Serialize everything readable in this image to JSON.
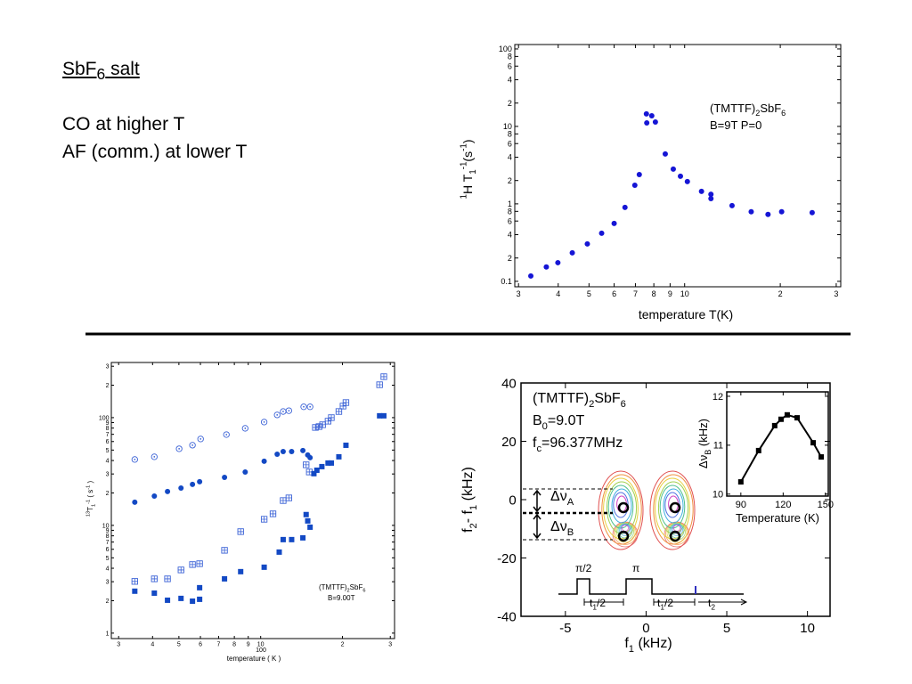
{
  "header": {
    "title": [
      "SbF",
      {
        "sub": "6"
      },
      " salt"
    ],
    "lines": [
      "CO at higher T",
      "AF (comm.) at lower T"
    ]
  },
  "chart_data": [
    {
      "type": "scatter",
      "xlog": true,
      "ylog": true,
      "xlabel": "temperature T(K)",
      "ylabel": [
        {
          "sup": "1"
        },
        "H T",
        {
          "sub": "1"
        },
        {
          "sup": "-1"
        },
        "(s",
        {
          "sup": "-1"
        },
        ")"
      ],
      "annotations": [
        [
          "(TMTTF)",
          {
            "sub": "2"
          },
          "SbF",
          {
            "sub": "6"
          }
        ],
        [
          "B=9T P=0"
        ]
      ],
      "xlim": [
        2.92,
        31
      ],
      "ylim": [
        0.085,
        114
      ],
      "xticks": [
        3,
        4,
        5,
        6,
        7,
        8,
        9,
        10,
        {
          "value": 20,
          "label": "2"
        },
        {
          "value": 30,
          "label": "3"
        }
      ],
      "yticks": [
        0.1,
        {
          "value": 0.2,
          "label": "2"
        },
        {
          "value": 0.4,
          "label": "4"
        },
        {
          "value": 0.6,
          "label": "6"
        },
        {
          "value": 0.8,
          "label": "8"
        },
        1,
        2,
        4,
        6,
        8,
        10,
        {
          "value": 20,
          "label": "2"
        },
        {
          "value": 40,
          "label": "4"
        },
        {
          "value": 60,
          "label": "6"
        },
        {
          "value": 80,
          "label": "8"
        },
        100
      ],
      "series": [
        {
          "color": "#1515d5",
          "marker": "circle",
          "x": [
            3.28,
            3.67,
            3.99,
            4.43,
            4.94,
            5.48,
            6.0,
            6.49,
            6.97,
            7.2,
            7.58,
            7.6,
            7.88,
            8.09,
            8.69,
            9.21,
            9.7,
            10.2,
            11.3,
            12.1,
            12.1,
            14.1,
            16.2,
            18.3,
            20.2,
            25.2
          ],
          "values": [
            0.117,
            0.153,
            0.174,
            0.233,
            0.304,
            0.418,
            0.558,
            0.9,
            1.74,
            2.39,
            14.5,
            11.1,
            13.7,
            11.4,
            4.41,
            2.81,
            2.27,
            1.94,
            1.45,
            1.33,
            1.17,
            0.95,
            0.79,
            0.73,
            0.79,
            0.77
          ]
        }
      ]
    },
    {
      "type": "scatter",
      "xlog": true,
      "ylog": true,
      "xlabel": "temperature ( K )",
      "x_decade_label": "100",
      "ylabel": [
        {
          "sup": "13"
        },
        "T",
        {
          "sub": "1"
        },
        {
          "sup": "-1"
        },
        " ( s",
        {
          "sup": "-1"
        },
        " )"
      ],
      "annotations": [
        [
          "(TMTTF)",
          {
            "sub": "2"
          },
          "SbF",
          {
            "sub": "6"
          }
        ],
        [
          "B=9.00T"
        ]
      ],
      "xlim": [
        2.82,
        31.1
      ],
      "ylim": [
        0.89,
        325
      ],
      "xticks": [
        3,
        4,
        5,
        6,
        7,
        8,
        9,
        10,
        {
          "value": 20,
          "label": "2"
        },
        {
          "value": 30,
          "label": "3"
        }
      ],
      "yticks": [
        1,
        2,
        3,
        4,
        5,
        6,
        7,
        8,
        9,
        10,
        {
          "value": 20,
          "label": "2"
        },
        {
          "value": 30,
          "label": "3"
        },
        {
          "value": 40,
          "label": "4"
        },
        {
          "value": 50,
          "label": "5"
        },
        {
          "value": 60,
          "label": "6"
        },
        {
          "value": 70,
          "label": "7"
        },
        {
          "value": 80,
          "label": "8"
        },
        {
          "value": 90,
          "label": "9"
        },
        100,
        {
          "value": 200,
          "label": "2"
        },
        {
          "value": 300,
          "label": "3"
        }
      ],
      "series": [
        {
          "color": "#3b62d6",
          "marker": "circle-dot",
          "x": [
            3.44,
            4.06,
            5.01,
            5.61,
            6.01,
            7.48,
            8.77,
            10.3,
            11.5,
            12.1,
            12.7,
            14.4,
            15.2
          ],
          "values": [
            40.9,
            43.3,
            51.4,
            55.5,
            63.4,
            69.6,
            79.6,
            91.0,
            106,
            114,
            116,
            126,
            126
          ]
        },
        {
          "color": "#1349c4",
          "marker": "circle",
          "x": [
            3.44,
            4.06,
            4.54,
            5.09,
            5.61,
            5.96,
            7.36,
            8.77,
            10.3,
            11.5,
            12.1,
            13.0,
            14.3,
            14.9,
            15.2
          ],
          "values": [
            16.4,
            18.7,
            20.6,
            22.2,
            24.0,
            25.4,
            27.9,
            31.3,
            39.4,
            45.8,
            48.5,
            48.5,
            49.5,
            45.0,
            42.5
          ]
        },
        {
          "color": "#3b62d6",
          "marker": "square-plus",
          "x": [
            3.44,
            4.06,
            4.54,
            5.09,
            5.61,
            5.96,
            7.36,
            8.44,
            10.3,
            11.1,
            12.1,
            12.7,
            14.7,
            15.1,
            15.9,
            16.4,
            16.9,
            17.7,
            18.2,
            19.4,
            20.1,
            20.6,
            27.4,
            28.4
          ],
          "values": [
            3.02,
            3.19,
            3.19,
            3.86,
            4.33,
            4.41,
            5.87,
            8.75,
            11.4,
            12.8,
            17.0,
            18.0,
            36.5,
            31.3,
            81.1,
            82.6,
            85.9,
            92.7,
            100,
            114,
            128,
            138,
            202,
            240
          ]
        },
        {
          "color": "#1349c4",
          "marker": "square",
          "x": [
            3.44,
            4.06,
            4.54,
            5.09,
            5.61,
            5.96,
            5.96,
            7.36,
            8.44,
            10.3,
            11.7,
            12.1,
            13.0,
            14.3,
            14.7,
            14.9,
            15.2,
            15.7,
            16.1,
            16.8,
            17.7,
            18.2,
            19.4,
            20.6,
            27.4,
            28.4
          ],
          "values": [
            2.45,
            2.35,
            2.02,
            2.1,
            1.98,
            2.64,
            2.06,
            3.19,
            3.72,
            4.09,
            5.65,
            7.38,
            7.38,
            7.66,
            12.6,
            11.0,
            9.62,
            30.2,
            32.5,
            35.1,
            37.9,
            37.9,
            43.3,
            55.4,
            104,
            104
          ]
        }
      ]
    },
    {
      "type": "contour",
      "xlabel": [
        "f",
        {
          "sub": "1"
        },
        " (kHz)"
      ],
      "ylabel": [
        "f",
        {
          "sub": "2"
        },
        "- f",
        {
          "sub": "1"
        },
        " (kHz)"
      ],
      "annotations": [
        [
          "(TMTTF)",
          {
            "sub": "2"
          },
          "SbF",
          {
            "sub": "6"
          }
        ],
        [
          "B",
          {
            "sub": "0"
          },
          "=9.0T"
        ],
        [
          "f",
          {
            "sub": "c"
          },
          "=96.377MHz"
        ],
        [
          "Δν",
          {
            "sub": "A"
          }
        ],
        [
          "Δν",
          {
            "sub": "B"
          }
        ],
        [
          "π/2"
        ],
        [
          "π"
        ],
        [
          "t",
          {
            "sub": "1"
          },
          "/2"
        ],
        [
          "t",
          {
            "sub": "1"
          },
          "/2"
        ],
        [
          "t",
          {
            "sub": "2"
          }
        ]
      ],
      "xlim": [
        -7.75,
        11.4
      ],
      "ylim": [
        -40,
        40
      ],
      "xticks": [
        -5,
        0,
        5,
        10
      ],
      "yticks": [
        -40,
        -20,
        0,
        20,
        40
      ]
    },
    {
      "type": "line",
      "color": "#000000",
      "marker": "square",
      "xlabel": "Temperature (K)",
      "ylabel": [
        "Δν",
        {
          "sub": "B"
        },
        " (kHz)"
      ],
      "xlim": [
        80,
        152
      ],
      "ylim": [
        9.96,
        12.09
      ],
      "xticks": [
        90,
        120,
        150
      ],
      "yticks": [
        10,
        11,
        12
      ],
      "series": [
        {
          "color": "#000000",
          "marker": "square",
          "x": [
            90,
            102.6,
            114,
            118.5,
            122.9,
            129.9,
            141.3,
            147
          ],
          "values": [
            10.25,
            10.89,
            11.4,
            11.53,
            11.62,
            11.56,
            11.05,
            10.76
          ]
        }
      ]
    }
  ]
}
